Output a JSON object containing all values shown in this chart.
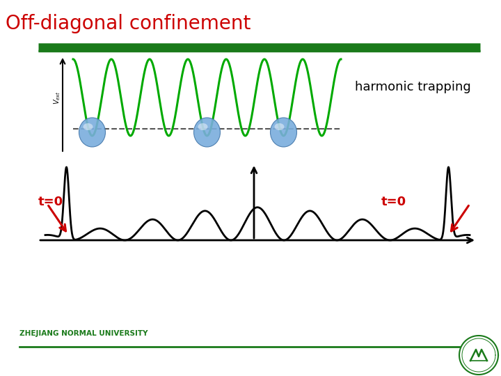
{
  "title": "Off-diagonal confinement",
  "title_color": "#cc0000",
  "title_fontsize": 20,
  "background_color": "#ffffff",
  "top_bar_color": "#1a7a1a",
  "harmonic_trapping_text": "harmonic trapping",
  "t0_left_text": "t=0",
  "t0_right_text": "t=0",
  "footer_text": "ZHEJIANG NORMAL UNIVERSITY",
  "footer_line_color": "#1a7a1a",
  "green_wave_color": "#00aa00",
  "black_wave_color": "#000000",
  "dashed_line_color": "#555555",
  "arrow_color": "#cc0000",
  "sphere_color": "#6699cc",
  "sphere_edge_color": "#4477aa"
}
